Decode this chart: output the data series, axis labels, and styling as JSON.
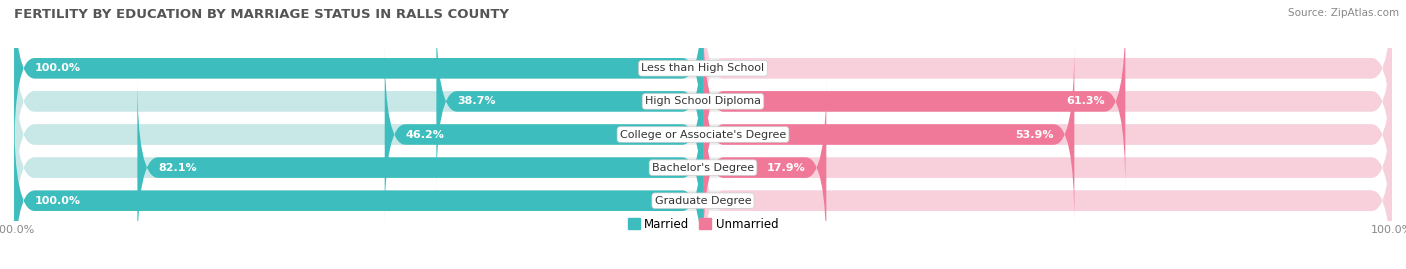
{
  "title": "FERTILITY BY EDUCATION BY MARRIAGE STATUS IN RALLS COUNTY",
  "source": "Source: ZipAtlas.com",
  "categories": [
    "Less than High School",
    "High School Diploma",
    "College or Associate's Degree",
    "Bachelor's Degree",
    "Graduate Degree"
  ],
  "married": [
    100.0,
    38.7,
    46.2,
    82.1,
    100.0
  ],
  "unmarried": [
    0.0,
    61.3,
    53.9,
    17.9,
    0.0
  ],
  "color_married": "#3dbdbd",
  "color_unmarried": "#f07898",
  "color_married_light": "#c8e8e8",
  "color_unmarried_light": "#f8d0dc",
  "color_bg_row": "#ebebeb",
  "bar_height": 0.62,
  "background_color": "#ffffff",
  "title_fontsize": 9.5,
  "label_fontsize": 8.0,
  "legend_fontsize": 8.5,
  "source_fontsize": 7.5
}
